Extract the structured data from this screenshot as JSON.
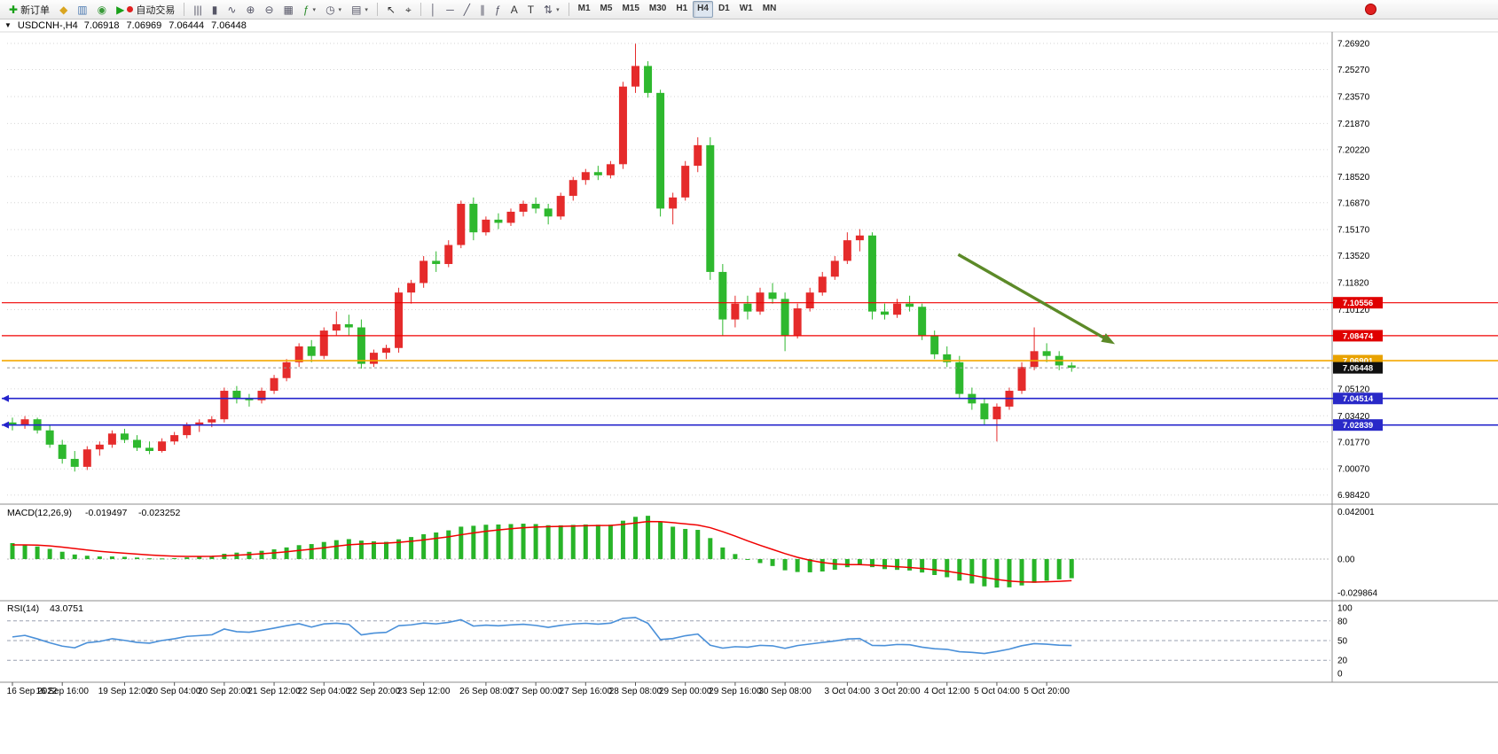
{
  "toolbar": {
    "new_order_label": "新订单",
    "new_order_icon_glyph": "✚",
    "autotrade_label": "自动交易",
    "autotrade_play_glyph": "▶",
    "left_icons": [
      {
        "name": "favorites-icon",
        "glyph": "◆",
        "color": "#d9a520"
      },
      {
        "name": "market-watch-icon",
        "glyph": "▥",
        "color": "#4a78b0"
      },
      {
        "name": "alerts-icon",
        "glyph": "◉",
        "color": "#3a9a3a"
      }
    ],
    "chart_tool_icons": [
      {
        "name": "bar-chart-icon",
        "glyph": "|||",
        "color": "#556"
      },
      {
        "name": "candlestick-chart-icon",
        "glyph": "▮",
        "color": "#556"
      },
      {
        "name": "line-chart-icon",
        "glyph": "∿",
        "color": "#556"
      },
      {
        "name": "zoom-in-icon",
        "glyph": "⊕",
        "color": "#556"
      },
      {
        "name": "zoom-out-icon",
        "glyph": "⊖",
        "color": "#556"
      },
      {
        "name": "tile-windows-icon",
        "glyph": "▦",
        "color": "#556"
      },
      {
        "name": "indicators-icon",
        "glyph": "ƒ",
        "color": "#2a8a2a",
        "caret": true
      },
      {
        "name": "timeframes-dropdown-icon",
        "glyph": "◷",
        "color": "#556",
        "caret": true
      },
      {
        "name": "templates-icon",
        "glyph": "▤",
        "color": "#556",
        "caret": true
      }
    ],
    "cursor_icons": [
      {
        "name": "cursor-icon",
        "glyph": "↖",
        "color": "#333"
      },
      {
        "name": "crosshair-icon",
        "glyph": "⌖",
        "color": "#333"
      }
    ],
    "draw_icons": [
      {
        "name": "vertical-line-icon",
        "glyph": "│",
        "color": "#556"
      },
      {
        "name": "horizontal-line-icon",
        "glyph": "─",
        "color": "#556"
      },
      {
        "name": "trendline-icon",
        "glyph": "╱",
        "color": "#556"
      },
      {
        "name": "equidistant-channel-icon",
        "glyph": "∥",
        "color": "#556"
      },
      {
        "name": "fibonacci-icon",
        "glyph": "ƒ",
        "color": "#556"
      },
      {
        "name": "text-icon",
        "glyph": "A",
        "color": "#333"
      },
      {
        "name": "text-label-icon",
        "glyph": "T",
        "color": "#333"
      },
      {
        "name": "arrows-icon",
        "glyph": "⇅",
        "color": "#556",
        "caret": true
      }
    ],
    "timeframes": [
      "M1",
      "M5",
      "M15",
      "M30",
      "H1",
      "H4",
      "D1",
      "W1",
      "MN"
    ],
    "active_timeframe": "H4"
  },
  "chart_data": {
    "type": "candlestick",
    "symbol": "USDCNH-",
    "timeframe": "H4",
    "title": {
      "dropdown_glyph": "▼",
      "symbol_period": "USDCNH-,H4",
      "open": "7.06918",
      "high": "7.06969",
      "low": "7.06444",
      "close": "7.06448"
    },
    "colors": {
      "up": "#e52b2b",
      "down": "#2eb82e"
    },
    "candles": [
      [
        7.03,
        7.033,
        7.025,
        7.028
      ],
      [
        7.028,
        7.034,
        7.026,
        7.032
      ],
      [
        7.032,
        7.033,
        7.023,
        7.025
      ],
      [
        7.025,
        7.028,
        7.014,
        7.016
      ],
      [
        7.016,
        7.019,
        7.004,
        7.007
      ],
      [
        7.007,
        7.012,
        6.999,
        7.002
      ],
      [
        7.002,
        7.015,
        7.0,
        7.013
      ],
      [
        7.013,
        7.018,
        7.009,
        7.016
      ],
      [
        7.016,
        7.025,
        7.014,
        7.023
      ],
      [
        7.023,
        7.026,
        7.017,
        7.019
      ],
      [
        7.019,
        7.022,
        7.012,
        7.014
      ],
      [
        7.014,
        7.018,
        7.01,
        7.012
      ],
      [
        7.012,
        7.02,
        7.011,
        7.018
      ],
      [
        7.018,
        7.024,
        7.016,
        7.022
      ],
      [
        7.022,
        7.03,
        7.02,
        7.028
      ],
      [
        7.028,
        7.032,
        7.024,
        7.03
      ],
      [
        7.03,
        7.034,
        7.027,
        7.032
      ],
      [
        7.032,
        7.052,
        7.03,
        7.05
      ],
      [
        7.05,
        7.053,
        7.042,
        7.045
      ],
      [
        7.045,
        7.048,
        7.04,
        7.044
      ],
      [
        7.044,
        7.052,
        7.042,
        7.05
      ],
      [
        7.05,
        7.06,
        7.048,
        7.058
      ],
      [
        7.058,
        7.07,
        7.056,
        7.068
      ],
      [
        7.068,
        7.08,
        7.065,
        7.078
      ],
      [
        7.078,
        7.082,
        7.068,
        7.072
      ],
      [
        7.072,
        7.09,
        7.07,
        7.088
      ],
      [
        7.088,
        7.1,
        7.085,
        7.092
      ],
      [
        7.092,
        7.098,
        7.085,
        7.09
      ],
      [
        7.09,
        7.095,
        7.064,
        7.067
      ],
      [
        7.067,
        7.076,
        7.065,
        7.074
      ],
      [
        7.074,
        7.079,
        7.07,
        7.077
      ],
      [
        7.077,
        7.115,
        7.074,
        7.112
      ],
      [
        7.112,
        7.12,
        7.105,
        7.118
      ],
      [
        7.118,
        7.135,
        7.115,
        7.132
      ],
      [
        7.132,
        7.138,
        7.125,
        7.13
      ],
      [
        7.13,
        7.145,
        7.128,
        7.142
      ],
      [
        7.142,
        7.17,
        7.14,
        7.168
      ],
      [
        7.168,
        7.172,
        7.145,
        7.15
      ],
      [
        7.15,
        7.16,
        7.148,
        7.158
      ],
      [
        7.158,
        7.162,
        7.152,
        7.156
      ],
      [
        7.156,
        7.165,
        7.154,
        7.163
      ],
      [
        7.163,
        7.17,
        7.16,
        7.168
      ],
      [
        7.168,
        7.172,
        7.162,
        7.165
      ],
      [
        7.165,
        7.168,
        7.155,
        7.16
      ],
      [
        7.16,
        7.175,
        7.158,
        7.173
      ],
      [
        7.173,
        7.185,
        7.17,
        7.183
      ],
      [
        7.183,
        7.19,
        7.18,
        7.188
      ],
      [
        7.188,
        7.192,
        7.183,
        7.186
      ],
      [
        7.186,
        7.195,
        7.184,
        7.193
      ],
      [
        7.193,
        7.245,
        7.19,
        7.242
      ],
      [
        7.242,
        7.269,
        7.238,
        7.255
      ],
      [
        7.255,
        7.258,
        7.235,
        7.238
      ],
      [
        7.238,
        7.24,
        7.16,
        7.165
      ],
      [
        7.165,
        7.175,
        7.155,
        7.172
      ],
      [
        7.172,
        7.195,
        7.17,
        7.192
      ],
      [
        7.192,
        7.21,
        7.188,
        7.205
      ],
      [
        7.205,
        7.21,
        7.12,
        7.125
      ],
      [
        7.125,
        7.13,
        7.085,
        7.095
      ],
      [
        7.095,
        7.11,
        7.09,
        7.105
      ],
      [
        7.105,
        7.11,
        7.095,
        7.1
      ],
      [
        7.1,
        7.115,
        7.098,
        7.112
      ],
      [
        7.112,
        7.118,
        7.105,
        7.108
      ],
      [
        7.108,
        7.112,
        7.075,
        7.085
      ],
      [
        7.085,
        7.105,
        7.083,
        7.102
      ],
      [
        7.102,
        7.115,
        7.1,
        7.112
      ],
      [
        7.112,
        7.125,
        7.11,
        7.122
      ],
      [
        7.122,
        7.135,
        7.12,
        7.132
      ],
      [
        7.132,
        7.15,
        7.13,
        7.145
      ],
      [
        7.145,
        7.152,
        7.138,
        7.148
      ],
      [
        7.148,
        7.15,
        7.095,
        7.1
      ],
      [
        7.1,
        7.105,
        7.095,
        7.098
      ],
      [
        7.098,
        7.108,
        7.096,
        7.105
      ],
      [
        7.105,
        7.11,
        7.1,
        7.103
      ],
      [
        7.103,
        7.105,
        7.082,
        7.085
      ],
      [
        7.085,
        7.088,
        7.07,
        7.073
      ],
      [
        7.073,
        7.078,
        7.065,
        7.068
      ],
      [
        7.068,
        7.072,
        7.045,
        7.048
      ],
      [
        7.048,
        7.052,
        7.038,
        7.042
      ],
      [
        7.042,
        7.045,
        7.028,
        7.032
      ],
      [
        7.032,
        7.042,
        7.018,
        7.04
      ],
      [
        7.04,
        7.052,
        7.038,
        7.05
      ],
      [
        7.05,
        7.068,
        7.048,
        7.065
      ],
      [
        7.065,
        7.09,
        7.063,
        7.075
      ],
      [
        7.075,
        7.08,
        7.068,
        7.072
      ],
      [
        7.072,
        7.075,
        7.063,
        7.066
      ],
      [
        7.066,
        7.068,
        7.062,
        7.0645
      ]
    ],
    "x_labels": [
      {
        "index": 0,
        "label": "16 Sep 2022"
      },
      {
        "index": 4,
        "label": "16 Sep 16:00"
      },
      {
        "index": 9,
        "label": "19 Sep 12:00"
      },
      {
        "index": 13,
        "label": "20 Sep 04:00"
      },
      {
        "index": 17,
        "label": "20 Sep 20:00"
      },
      {
        "index": 21,
        "label": "21 Sep 12:00"
      },
      {
        "index": 25,
        "label": "22 Sep 04:00"
      },
      {
        "index": 29,
        "label": "22 Sep 20:00"
      },
      {
        "index": 33,
        "label": "23 Sep 12:00"
      },
      {
        "index": 38,
        "label": "26 Sep 08:00"
      },
      {
        "index": 42,
        "label": "27 Sep 00:00"
      },
      {
        "index": 46,
        "label": "27 Sep 16:00"
      },
      {
        "index": 50,
        "label": "28 Sep 08:00"
      },
      {
        "index": 54,
        "label": "29 Sep 00:00"
      },
      {
        "index": 58,
        "label": "29 Sep 16:00"
      },
      {
        "index": 62,
        "label": "30 Sep 08:00"
      },
      {
        "index": 67,
        "label": "3 Oct 04:00"
      },
      {
        "index": 71,
        "label": "3 Oct 20:00"
      },
      {
        "index": 75,
        "label": "4 Oct 12:00"
      },
      {
        "index": 79,
        "label": "5 Oct 04:00"
      },
      {
        "index": 83,
        "label": "5 Oct 20:00"
      }
    ],
    "y_axis": {
      "top_price": 7.2765,
      "bottom_price": 6.979,
      "labels": [
        "7.26920",
        "7.25270",
        "7.23570",
        "7.21870",
        "7.20220",
        "7.18520",
        "7.16870",
        "7.15170",
        "7.13520",
        "7.11820",
        "7.10120",
        "7.05120",
        "7.03420",
        "7.01770",
        "7.00070",
        "6.98420"
      ]
    },
    "h_lines": [
      {
        "price": 7.10556,
        "badge": "7.10556",
        "color": "#f00000",
        "badge_color": "#e00000",
        "width": 1.2
      },
      {
        "price": 7.08474,
        "badge": "7.08474",
        "color": "#f00000",
        "badge_color": "#e00000",
        "width": 1.2
      },
      {
        "price": 7.06901,
        "badge": "7.06901",
        "color": "#f5a800",
        "badge_color": "#e8a200",
        "width": 1.6
      },
      {
        "price": 7.04514,
        "badge": "7.04514",
        "color": "#2424cc",
        "badge_color": "#2929c8",
        "width": 1.6,
        "left_marker": true
      },
      {
        "price": 7.02839,
        "badge": "7.02839",
        "color": "#2424cc",
        "badge_color": "#2929c8",
        "width": 1.6,
        "left_marker": true
      }
    ],
    "current_price": {
      "value": 7.06448,
      "label": "7.06448",
      "badge_color": "#101010"
    },
    "trend_arrow": {
      "from": {
        "index": 75.9,
        "price": 7.136
      },
      "to": {
        "index": 87.8,
        "price": 7.0825
      },
      "color": "#5c8a28"
    },
    "indicators": {
      "macd": {
        "label": "MACD(12,26,9)",
        "main_value": "-0.019497",
        "signal_value": "-0.023252",
        "params": {
          "fast": 12,
          "slow": 26,
          "signal": 9
        },
        "axis_labels": [
          "0.042001",
          "0.00",
          "-0.029864"
        ],
        "histogram_color": "#28b428",
        "signal_color": "#f00000"
      },
      "rsi": {
        "label": "RSI(14)",
        "value": "43.0751",
        "period": 14,
        "levels": [
          80,
          50,
          20
        ],
        "axis_labels": [
          "100",
          "80",
          "50",
          "20",
          "0"
        ],
        "line_color": "#4a90d9"
      }
    }
  }
}
